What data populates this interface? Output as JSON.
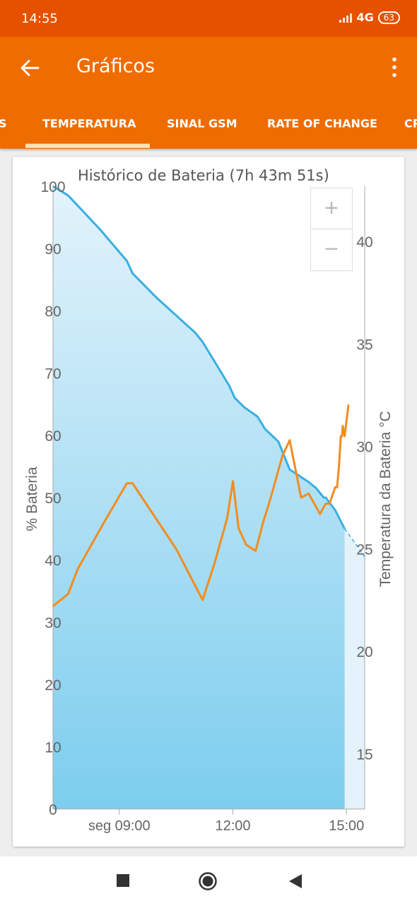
{
  "status": {
    "time": "14:55",
    "network": "4G",
    "battery": "63"
  },
  "appbar": {
    "title": "Gráficos",
    "back_icon": "arrow-left-icon",
    "menu_icon": "more-vert-icon"
  },
  "tabs": [
    {
      "label": "S",
      "selected": false
    },
    {
      "label": "TEMPERATURA",
      "selected": true
    },
    {
      "label": "SINAL GSM",
      "selected": false
    },
    {
      "label": "RATE OF CHANGE",
      "selected": false
    },
    {
      "label": "CP",
      "selected": false
    }
  ],
  "zoom": {
    "plus": "+",
    "minus": "−"
  },
  "colors": {
    "battery": "#3aaee0",
    "temperature": "#f28c1f",
    "accent": "#ef6c00",
    "status": "#e65100"
  },
  "chart_data": {
    "type": "line",
    "title": "Histórico de Bateria (7h 43m 51s)",
    "ylabel": "% Bateria",
    "y2label": "Temperatura da Bateria °C",
    "ylim": [
      0,
      100
    ],
    "y2lim": [
      12.3,
      42.7
    ],
    "xlim": [
      7.25,
      15.48
    ],
    "x_ticks": [
      {
        "x": 9.0,
        "label": "seg 09:00"
      },
      {
        "x": 12.0,
        "label": "12:00"
      },
      {
        "x": 15.0,
        "label": "15:00"
      }
    ],
    "y_ticks": [
      "0",
      "10",
      "20",
      "30",
      "40",
      "50",
      "60",
      "70",
      "80",
      "90",
      "100"
    ],
    "y2_ticks": [
      "15",
      "20",
      "25",
      "30",
      "35",
      "40"
    ],
    "series": [
      {
        "key": "battery",
        "x": [
          7.25,
          7.65,
          8.5,
          9.2,
          9.35,
          10.0,
          11.0,
          11.2,
          11.5,
          11.9,
          12.05,
          12.3,
          12.65,
          12.85,
          13.2,
          13.5,
          14.0,
          14.2,
          14.4,
          14.45,
          14.7,
          14.95
        ],
        "y": [
          100,
          98.5,
          93,
          88,
          86,
          82,
          76.5,
          75,
          72,
          68,
          66,
          64.5,
          63,
          61,
          59,
          54.5,
          52.5,
          51.5,
          50,
          50,
          48,
          45
        ]
      },
      {
        "key": "battery_projection",
        "x": [
          14.95,
          15.25,
          15.48
        ],
        "y": [
          45,
          42.5,
          40.5
        ]
      },
      {
        "key": "temperature",
        "x": [
          7.25,
          7.65,
          7.9,
          8.6,
          9.2,
          9.35,
          10.5,
          11.2,
          11.5,
          11.85,
          12.0,
          12.15,
          12.35,
          12.6,
          12.8,
          13.0,
          13.3,
          13.5,
          13.8,
          14.0,
          14.15,
          14.3,
          14.45,
          14.55,
          14.7,
          14.75,
          14.8,
          14.85,
          14.88,
          14.9,
          14.95,
          15.05,
          15.07
        ],
        "y": [
          22.2,
          22.8,
          24.0,
          26.3,
          28.2,
          28.2,
          25.0,
          22.5,
          24.2,
          26.5,
          28.3,
          26.0,
          25.2,
          24.9,
          26.3,
          27.5,
          29.5,
          30.3,
          27.5,
          27.7,
          27.2,
          26.7,
          27.2,
          27.2,
          28.0,
          28.0,
          29.0,
          30.5,
          30.5,
          31.0,
          30.5,
          32.0,
          32.0
        ]
      }
    ]
  }
}
